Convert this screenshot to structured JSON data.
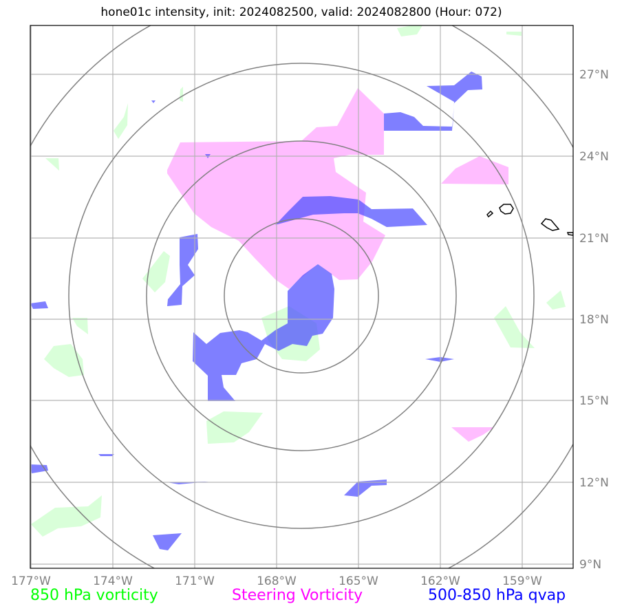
{
  "title": "hone01c intensity, init: 2024082500, valid: 2024082800 (Hour: 072)",
  "map": {
    "lon_ticks": [
      "177°W",
      "174°W",
      "171°W",
      "168°W",
      "165°W",
      "162°W",
      "159°W"
    ],
    "lat_ticks": [
      "27°N",
      "24°N",
      "21°N",
      "18°N",
      "15°N",
      "12°N",
      "9°N"
    ],
    "colors": {
      "vorticity_850": "#ccffcc",
      "steering_vorticity": "#ff99ff",
      "qvap": "#4d4dff",
      "grid": "#b3b3b3",
      "range_rings": "#808080",
      "coastline": "#000000"
    }
  },
  "legend": {
    "vorticity_850": "850 hPa vorticity",
    "steering": "Steering Vorticity",
    "qvap": "500-850 hPa qvap"
  }
}
